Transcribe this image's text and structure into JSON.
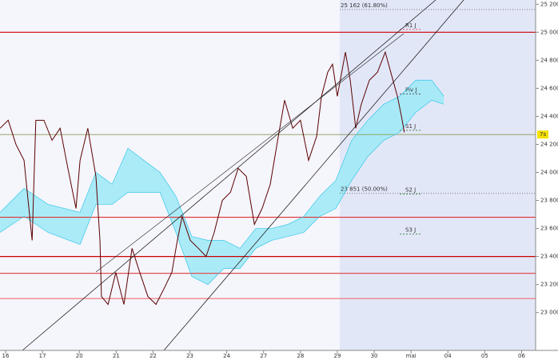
{
  "chart_data": {
    "type": "line",
    "xlim": [
      -0.152,
      14.38
    ],
    "ylim": [
      22730,
      25230
    ],
    "xticks": [
      {
        "value": 0,
        "label": "16"
      },
      {
        "value": 1,
        "label": "17"
      },
      {
        "value": 2,
        "label": "20"
      },
      {
        "value": 3,
        "label": "21"
      },
      {
        "value": 4,
        "label": "22"
      },
      {
        "value": 5,
        "label": "23"
      },
      {
        "value": 6,
        "label": "24"
      },
      {
        "value": 7,
        "label": "27"
      },
      {
        "value": 8,
        "label": "28"
      },
      {
        "value": 9,
        "label": "29"
      },
      {
        "value": 10,
        "label": "30"
      },
      {
        "value": 11,
        "label": "mai"
      },
      {
        "value": 12,
        "label": "04"
      },
      {
        "value": 13,
        "label": "05"
      },
      {
        "value": 14,
        "label": "06"
      }
    ],
    "yticks": [
      {
        "value": 23000,
        "label": "23 000"
      },
      {
        "value": 23200,
        "label": "23 200"
      },
      {
        "value": 23400,
        "label": "23 400"
      },
      {
        "value": 23600,
        "label": "23 600"
      },
      {
        "value": 23800,
        "label": "23 800"
      },
      {
        "value": 24000,
        "label": "24 000"
      },
      {
        "value": 24200,
        "label": "24 200"
      },
      {
        "value": 24400,
        "label": "24 400"
      },
      {
        "value": 24600,
        "label": "24 600"
      },
      {
        "value": 24800,
        "label": "24 800"
      },
      {
        "value": 25000,
        "label": "25 000"
      },
      {
        "value": 25200,
        "label": "25 200"
      }
    ],
    "series": [
      {
        "color": "#5a0000",
        "x": [
          -0.15,
          0.07,
          0.28,
          0.5,
          0.72,
          0.82,
          1.04,
          1.26,
          1.48,
          1.69,
          1.91,
          2.02,
          2.23,
          2.45,
          2.56,
          2.6,
          2.78,
          2.99,
          3.21,
          3.43,
          3.64,
          3.86,
          4.08,
          4.3,
          4.51,
          4.66,
          4.79,
          5.01,
          5.23,
          5.44,
          5.66,
          5.88,
          6.1,
          6.31,
          6.53,
          6.75,
          6.96,
          7.18,
          7.4,
          7.57,
          7.79,
          8.0,
          8.22,
          8.44,
          8.57,
          8.74,
          8.87,
          9.0,
          9.22,
          9.35,
          9.5,
          9.65,
          9.87,
          10.09,
          10.3,
          10.48,
          10.63,
          10.74,
          10.82
        ],
        "values": [
          24315,
          24372,
          24200,
          24086,
          23515,
          24372,
          24372,
          24229,
          24315,
          24029,
          23743,
          24086,
          24315,
          23972,
          23515,
          23115,
          23058,
          23286,
          23058,
          23458,
          23286,
          23115,
          23058,
          23172,
          23286,
          23515,
          23686,
          23515,
          23458,
          23400,
          23572,
          23800,
          23858,
          24029,
          23972,
          23629,
          23743,
          23915,
          24258,
          24515,
          24315,
          24372,
          24086,
          24258,
          24543,
          24715,
          24772,
          24543,
          24858,
          24658,
          24315,
          24486,
          24658,
          24715,
          24858,
          24686,
          24543,
          24400,
          24286
        ]
      },
      {
        "color": "#35c7e6",
        "x": [
          -0.15,
          0.5,
          1.15,
          2.02,
          2.45,
          2.89,
          3.32,
          3.75,
          4.19,
          4.62,
          5.05,
          5.49,
          5.92,
          6.36,
          6.79,
          7.22,
          7.66,
          8.09,
          8.52,
          8.96,
          9.39,
          9.83,
          10.26,
          10.69,
          11.13,
          11.56,
          11.89
        ],
        "values": [
          23715,
          23886,
          23772,
          23715,
          24000,
          23915,
          24172,
          24086,
          24000,
          23829,
          23543,
          23515,
          23515,
          23458,
          23600,
          23600,
          23629,
          23686,
          23829,
          23943,
          24229,
          24372,
          24486,
          24543,
          24658,
          24658,
          24543
        ]
      },
      {
        "color": "#35c7e6",
        "x": [
          -0.15,
          0.5,
          1.15,
          2.02,
          2.45,
          2.89,
          3.32,
          3.75,
          4.19,
          4.62,
          5.05,
          5.49,
          5.92,
          6.36,
          6.79,
          7.22,
          7.66,
          8.09,
          8.52,
          8.96,
          9.39,
          9.83,
          10.26,
          10.69,
          11.13,
          11.56,
          11.89
        ],
        "values": [
          23572,
          23686,
          23572,
          23486,
          23772,
          23772,
          23858,
          23858,
          23858,
          23572,
          23258,
          23200,
          23315,
          23315,
          23458,
          23515,
          23543,
          23572,
          23686,
          23743,
          23943,
          24115,
          24229,
          24286,
          24429,
          24515,
          24486
        ]
      }
    ],
    "cloud_fill": "#9ee9f7",
    "levels": [
      {
        "value": 25000,
        "color": "#cc0000"
      },
      {
        "value": 23680,
        "color": "#e03030"
      },
      {
        "value": 23400,
        "color": "#cc0000"
      },
      {
        "value": 23280,
        "color": "#e05050"
      },
      {
        "value": 23100,
        "color": "#ee7070"
      }
    ],
    "fibs": [
      {
        "label": "25 162 (61.80%)",
        "value": 25162
      },
      {
        "label": "23 851 (50.00%)",
        "value": 23851
      }
    ],
    "pivots": [
      {
        "label": "R1 J",
        "value": 25020,
        "color": "#e06060"
      },
      {
        "label": "Piv J",
        "value": 24560,
        "color": "#555555"
      },
      {
        "label": "S1 J",
        "value": 24300,
        "color": "#4a8a4a"
      },
      {
        "label": "S2 J",
        "value": 23845,
        "color": "#4a8a4a"
      },
      {
        "label": "S3 J",
        "value": 23560,
        "color": "#4a8a4a"
      }
    ],
    "price_line": 24270,
    "price_marker_label": "7s"
  }
}
